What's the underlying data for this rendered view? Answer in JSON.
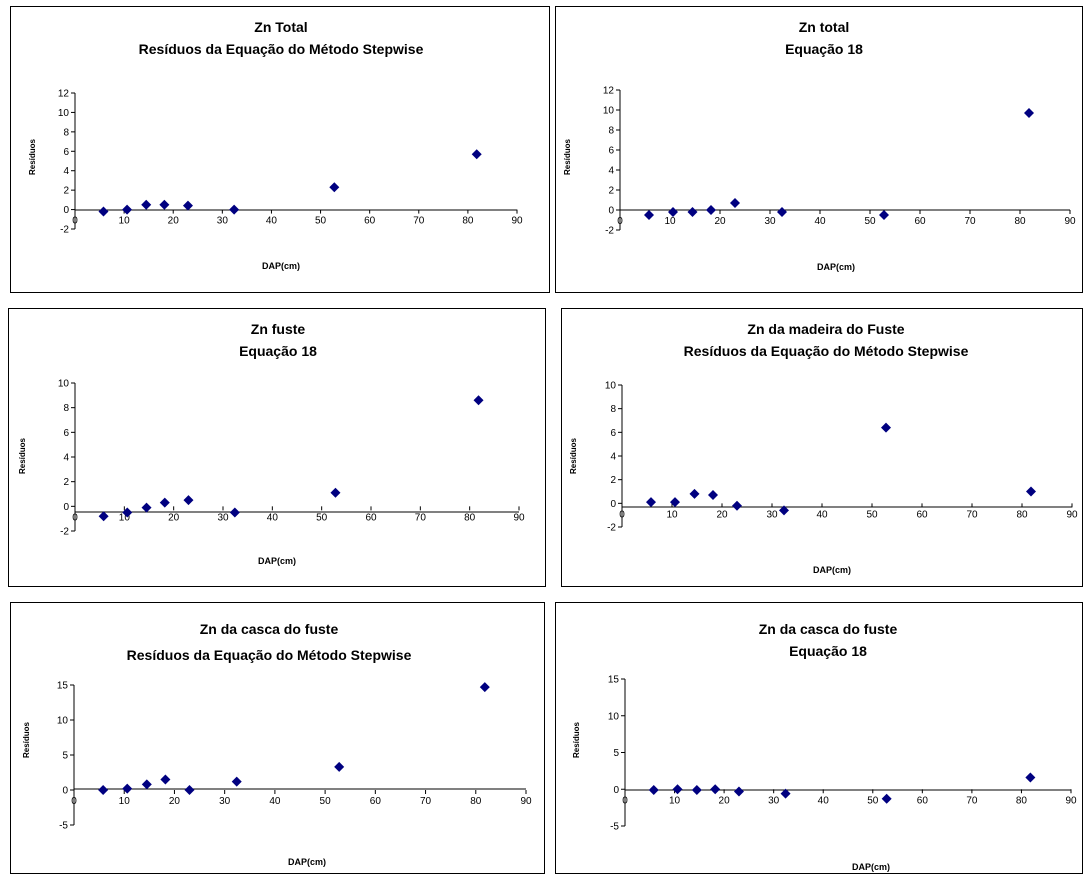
{
  "chart_data": [
    {
      "type": "scatter",
      "title": "Zn Total",
      "subtitle": "Resíduos da Equação do Método Stepwise",
      "xlabel": "DAP(cm)",
      "ylabel": "Resíduos",
      "xlim": [
        0,
        90
      ],
      "ylim": [
        -2,
        12
      ],
      "xticks": [
        "0",
        "10",
        "20",
        "30",
        "40",
        "50",
        "60",
        "70",
        "80",
        "90"
      ],
      "yticks": [
        "-2",
        "0",
        "2",
        "4",
        "6",
        "8",
        "10",
        "12"
      ],
      "grid": false,
      "marker_color": "#000080",
      "series": [
        {
          "points": [
            {
              "x": 5.8,
              "y": -0.2
            },
            {
              "x": 10.6,
              "y": 0.0
            },
            {
              "x": 14.5,
              "y": 0.5
            },
            {
              "x": 18.2,
              "y": 0.5
            },
            {
              "x": 23.0,
              "y": 0.4
            },
            {
              "x": 32.4,
              "y": 0.0
            },
            {
              "x": 52.8,
              "y": 2.3
            },
            {
              "x": 81.8,
              "y": 5.7
            }
          ]
        }
      ]
    },
    {
      "type": "scatter",
      "title": "Zn total",
      "subtitle": "Equação 18",
      "xlabel": "DAP(cm)",
      "ylabel": "Resíduos",
      "xlim": [
        0,
        90
      ],
      "ylim": [
        -2,
        12
      ],
      "xticks": [
        "0",
        "10",
        "20",
        "30",
        "40",
        "50",
        "60",
        "70",
        "80",
        "90"
      ],
      "yticks": [
        "-2",
        "0",
        "2",
        "4",
        "6",
        "8",
        "10",
        "12"
      ],
      "grid": false,
      "marker_color": "#000080",
      "series": [
        {
          "points": [
            {
              "x": 5.8,
              "y": -0.5
            },
            {
              "x": 10.6,
              "y": -0.2
            },
            {
              "x": 14.5,
              "y": -0.2
            },
            {
              "x": 18.2,
              "y": 0.0
            },
            {
              "x": 23.0,
              "y": 0.7
            },
            {
              "x": 32.4,
              "y": -0.2
            },
            {
              "x": 52.8,
              "y": -0.5
            },
            {
              "x": 81.8,
              "y": 9.7
            }
          ]
        }
      ]
    },
    {
      "type": "scatter",
      "title": "Zn fuste",
      "subtitle": "Equação 18",
      "xlabel": "DAP(cm)",
      "ylabel": "Resíduos",
      "xlim": [
        0,
        90
      ],
      "ylim": [
        -2,
        10
      ],
      "xticks": [
        "0",
        "10",
        "20",
        "30",
        "40",
        "50",
        "60",
        "70",
        "80",
        "90"
      ],
      "yticks": [
        "-2",
        "0",
        "2",
        "4",
        "6",
        "8",
        "10"
      ],
      "grid": false,
      "marker_color": "#000080",
      "series": [
        {
          "points": [
            {
              "x": 5.8,
              "y": -0.8
            },
            {
              "x": 10.6,
              "y": -0.5
            },
            {
              "x": 14.5,
              "y": -0.1
            },
            {
              "x": 18.2,
              "y": 0.3
            },
            {
              "x": 23.0,
              "y": 0.5
            },
            {
              "x": 32.4,
              "y": -0.5
            },
            {
              "x": 52.8,
              "y": 1.1
            },
            {
              "x": 81.8,
              "y": 8.6
            }
          ]
        }
      ]
    },
    {
      "type": "scatter",
      "title": "Zn da madeira do Fuste",
      "subtitle": "Resíduos da Equação do Método Stepwise",
      "xlabel": "DAP(cm)",
      "ylabel": "Resíduos",
      "xlim": [
        0,
        90
      ],
      "ylim": [
        -2,
        10
      ],
      "xticks": [
        "0",
        "10",
        "20",
        "30",
        "40",
        "50",
        "60",
        "70",
        "80",
        "90"
      ],
      "yticks": [
        "-2",
        "0",
        "2",
        "4",
        "6",
        "8",
        "10"
      ],
      "grid": false,
      "marker_color": "#000080",
      "series": [
        {
          "points": [
            {
              "x": 5.8,
              "y": 0.1
            },
            {
              "x": 10.6,
              "y": 0.1
            },
            {
              "x": 14.5,
              "y": 0.8
            },
            {
              "x": 18.2,
              "y": 0.7
            },
            {
              "x": 23.0,
              "y": -0.2
            },
            {
              "x": 32.4,
              "y": -0.6
            },
            {
              "x": 52.8,
              "y": 6.4
            },
            {
              "x": 81.8,
              "y": 1.0
            }
          ]
        }
      ]
    },
    {
      "type": "scatter",
      "title": "Zn da casca do fuste",
      "subtitle": "Resíduos da Equação do Método Stepwise",
      "xlabel": "DAP(cm)",
      "ylabel": "Resíduos",
      "xlim": [
        0,
        90
      ],
      "ylim": [
        -5,
        15
      ],
      "xticks": [
        "0",
        "10",
        "20",
        "30",
        "40",
        "50",
        "60",
        "70",
        "80",
        "90"
      ],
      "yticks": [
        "-5",
        "0",
        "5",
        "10",
        "15"
      ],
      "grid": false,
      "marker_color": "#000080",
      "series": [
        {
          "points": [
            {
              "x": 5.8,
              "y": 0.0
            },
            {
              "x": 10.6,
              "y": 0.2
            },
            {
              "x": 14.5,
              "y": 0.8
            },
            {
              "x": 18.2,
              "y": 1.5
            },
            {
              "x": 23.0,
              "y": 0.0
            },
            {
              "x": 32.4,
              "y": 1.2
            },
            {
              "x": 52.8,
              "y": 3.3
            },
            {
              "x": 81.8,
              "y": 14.7
            }
          ]
        }
      ]
    },
    {
      "type": "scatter",
      "title": "Zn da casca do fuste",
      "subtitle": "Equação 18",
      "xlabel": "DAP(cm)",
      "ylabel": "Resíduos",
      "xlim": [
        0,
        90
      ],
      "ylim": [
        -5,
        15
      ],
      "xticks": [
        "0",
        "10",
        "20",
        "30",
        "40",
        "50",
        "60",
        "70",
        "80",
        "90"
      ],
      "yticks": [
        "-5",
        "0",
        "5",
        "10",
        "15"
      ],
      "grid": false,
      "marker_color": "#000080",
      "series": [
        {
          "points": [
            {
              "x": 5.8,
              "y": -0.1
            },
            {
              "x": 10.6,
              "y": 0.0
            },
            {
              "x": 14.5,
              "y": -0.1
            },
            {
              "x": 18.2,
              "y": 0.0
            },
            {
              "x": 23.0,
              "y": -0.3
            },
            {
              "x": 32.4,
              "y": -0.6
            },
            {
              "x": 52.8,
              "y": -1.3
            },
            {
              "x": 81.8,
              "y": 1.6
            }
          ]
        }
      ]
    }
  ]
}
